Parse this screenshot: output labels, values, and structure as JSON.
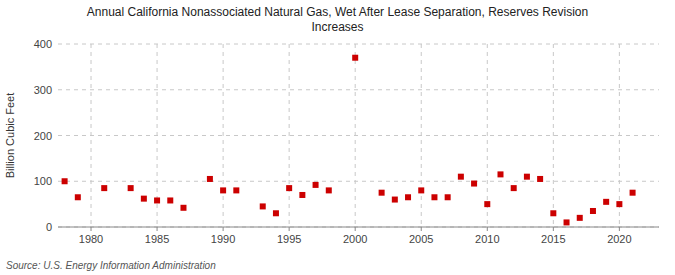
{
  "chart_data": {
    "type": "scatter",
    "title": "Annual California Nonassociated Natural Gas, Wet After Lease Separation, Reserves Revision\nIncreases",
    "y_label": "Billion Cubic Feet",
    "source": "Source: U.S. Energy Information Administration",
    "x": [
      1978,
      1979,
      1981,
      1983,
      1984,
      1985,
      1986,
      1987,
      1989,
      1990,
      1991,
      1993,
      1994,
      1995,
      1996,
      1997,
      1998,
      2000,
      2002,
      2003,
      2004,
      2005,
      2006,
      2007,
      2008,
      2009,
      2010,
      2011,
      2012,
      2013,
      2014,
      2015,
      2016,
      2017,
      2018,
      2019,
      2020,
      2021
    ],
    "values": [
      100,
      65,
      85,
      85,
      62,
      58,
      58,
      42,
      105,
      80,
      80,
      45,
      30,
      85,
      70,
      92,
      80,
      370,
      75,
      60,
      65,
      80,
      65,
      65,
      110,
      95,
      50,
      115,
      85,
      110,
      105,
      30,
      10,
      20,
      35,
      55,
      50,
      75
    ],
    "color": "#cc0000",
    "marker": "square",
    "xlim": [
      1977.5,
      2023
    ],
    "xticks": [
      1980,
      1985,
      1990,
      1995,
      2000,
      2005,
      2010,
      2015,
      2020
    ],
    "ylim": [
      0,
      400
    ],
    "yticks": [
      0,
      100,
      200,
      300,
      400
    ],
    "grid": true
  }
}
